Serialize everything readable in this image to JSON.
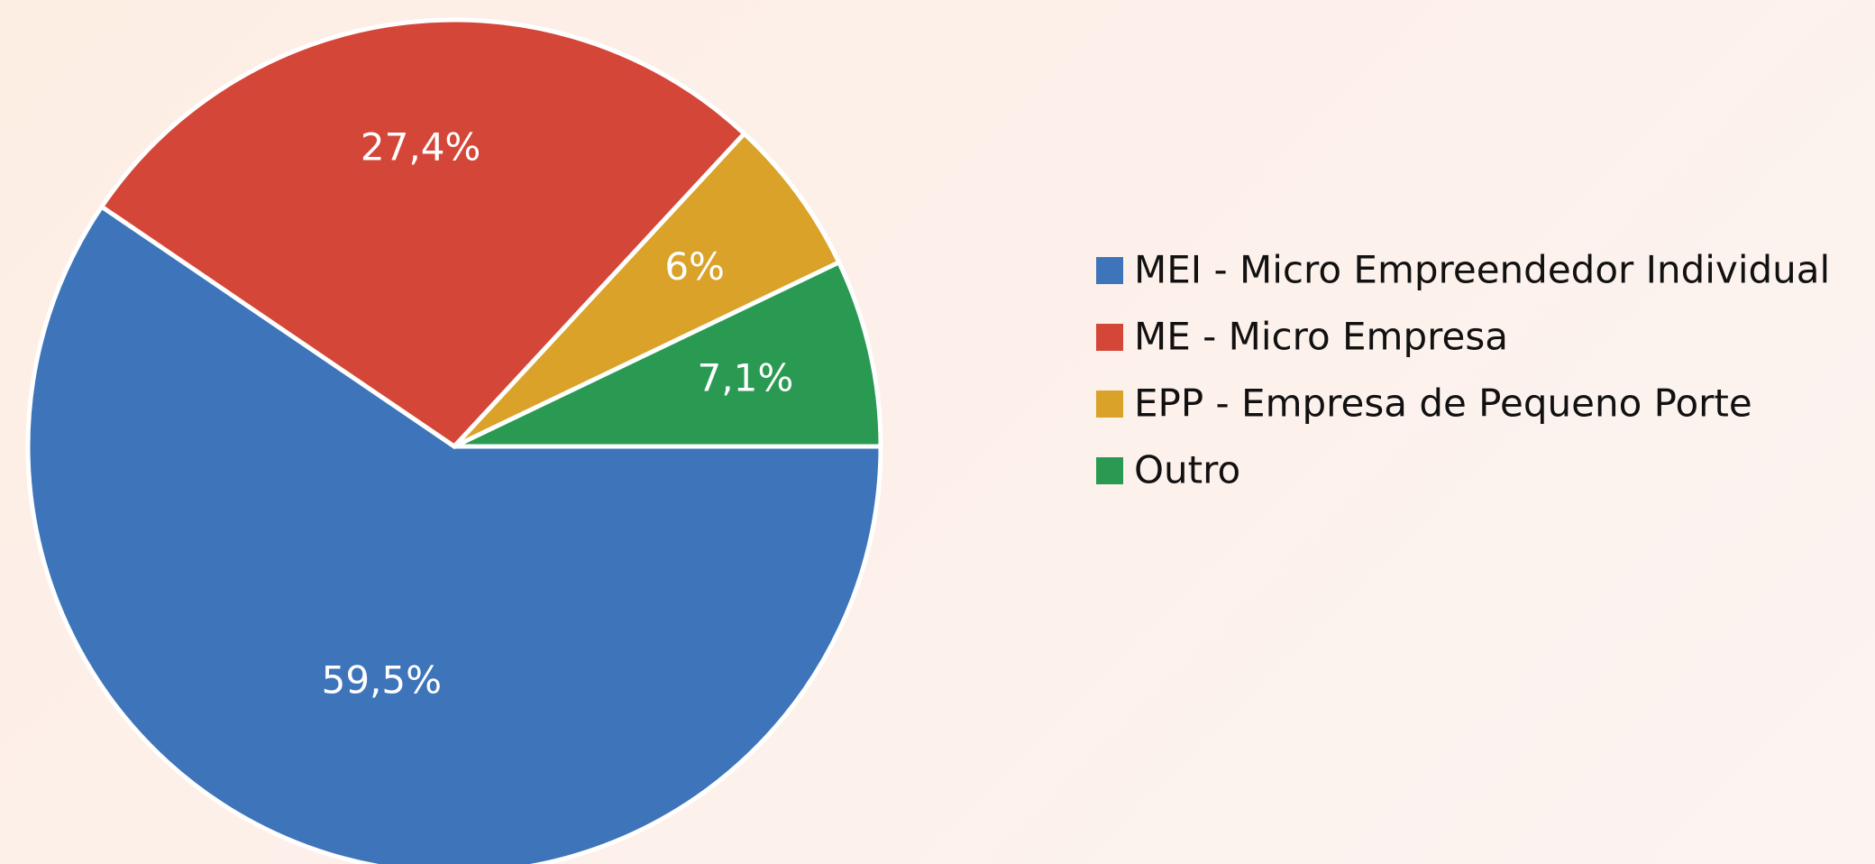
{
  "chart_data": {
    "type": "pie",
    "categories": [
      "MEI - Micro Empreendedor Individual",
      "ME - Micro Empresa",
      "EPP - Empresa de Pequeno Porte",
      "Outro"
    ],
    "values": [
      59.5,
      27.4,
      6,
      7.1
    ],
    "value_labels": [
      "59,5%",
      "27,4%",
      "6%",
      "7,1%"
    ],
    "colors": [
      "#3e74b9",
      "#d44638",
      "#daa228",
      "#2a9a52"
    ],
    "legend": "right"
  }
}
